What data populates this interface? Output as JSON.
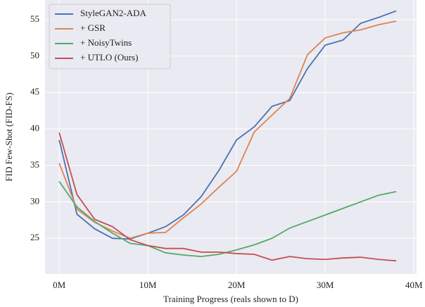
{
  "chart_data": {
    "type": "line",
    "xlabel": "Training Progress (reals shown to D)",
    "ylabel": "FID Few-Shot (FID-FS)",
    "x": [
      0,
      2,
      4,
      6,
      8,
      10,
      12,
      14,
      16,
      18,
      20,
      22,
      24,
      26,
      28,
      30,
      32,
      34,
      36,
      38
    ],
    "series": [
      {
        "name": "StyleGAN2-ADA",
        "color": "#4c72b0",
        "values": [
          38.5,
          28.3,
          26.3,
          25.0,
          24.9,
          25.7,
          26.6,
          28.2,
          30.7,
          34.3,
          38.5,
          40.3,
          43.1,
          43.9,
          48.3,
          51.5,
          52.2,
          54.5,
          55.3,
          56.2
        ]
      },
      {
        "name": "+ GSR",
        "color": "#dd8452",
        "values": [
          35.3,
          29.0,
          27.2,
          26.0,
          25.0,
          25.7,
          25.8,
          27.8,
          29.7,
          32.0,
          34.2,
          39.6,
          41.9,
          44.2,
          50.2,
          52.5,
          53.2,
          53.6,
          54.3,
          54.8
        ]
      },
      {
        "name": "+ NoisyTwins",
        "color": "#55a868",
        "values": [
          32.8,
          29.3,
          27.3,
          25.7,
          24.3,
          24.0,
          23.0,
          22.7,
          22.5,
          22.8,
          23.4,
          24.1,
          25.0,
          26.4,
          27.3,
          28.2,
          29.1,
          30.0,
          30.9,
          31.4
        ]
      },
      {
        "name": "+ UTLO (Ours)",
        "color": "#c44e52",
        "values": [
          39.5,
          31.0,
          27.6,
          26.6,
          24.8,
          24.0,
          23.6,
          23.6,
          23.1,
          23.1,
          22.9,
          22.8,
          22.0,
          22.5,
          22.2,
          22.1,
          22.3,
          22.4,
          22.1,
          21.9
        ]
      }
    ],
    "xlim": [
      -1.6,
      40.3
    ],
    "xticks": [
      {
        "value": 0,
        "label": "0M"
      },
      {
        "value": 10,
        "label": "10M"
      },
      {
        "value": 20,
        "label": "20M"
      },
      {
        "value": 30,
        "label": "30M"
      },
      {
        "value": 40,
        "label": "40M"
      }
    ],
    "ylim": [
      20.1,
      57.7
    ],
    "yticks": [
      25,
      30,
      35,
      40,
      45,
      50,
      55
    ],
    "grid": true,
    "legend": "upper-left"
  }
}
